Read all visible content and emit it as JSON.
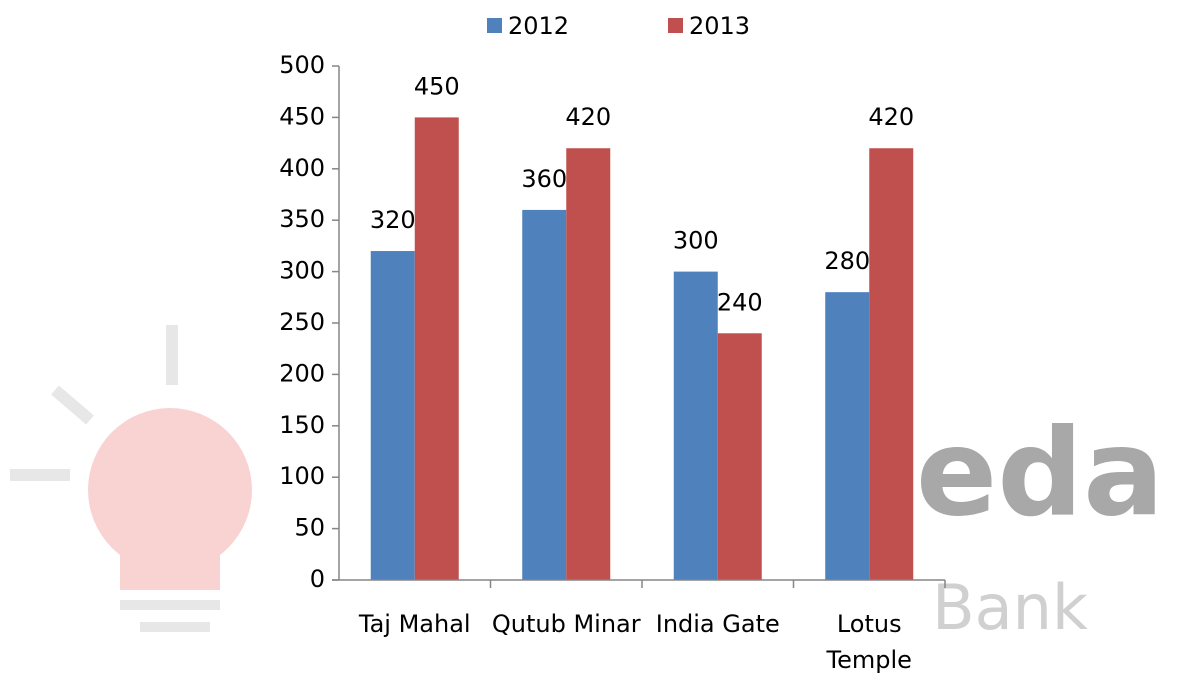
{
  "chart_data": {
    "type": "bar",
    "categories": [
      "Taj Mahal",
      "Qutub Minar",
      "India Gate",
      "Lotus Temple"
    ],
    "series": [
      {
        "name": "2012",
        "color": "#4f81bd",
        "values": [
          320,
          360,
          300,
          280
        ]
      },
      {
        "name": "2013",
        "color": "#c0504d",
        "values": [
          450,
          420,
          240,
          420
        ]
      }
    ],
    "ylim": [
      0,
      500
    ],
    "yticks": [
      0,
      50,
      100,
      150,
      200,
      250,
      300,
      350,
      400,
      450,
      500
    ],
    "grid": false,
    "legend": "top",
    "watermark": [
      "eda",
      "Bank"
    ]
  }
}
